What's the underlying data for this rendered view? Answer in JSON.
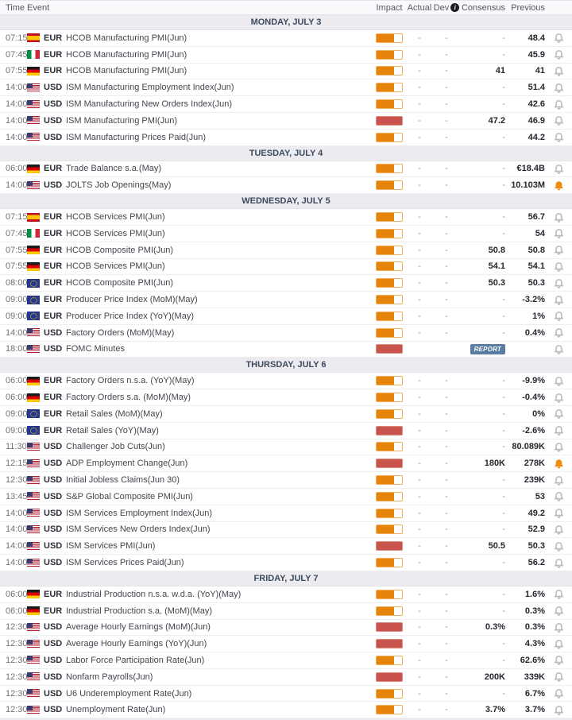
{
  "header": {
    "time": "Time",
    "event": "Event",
    "impact": "Impact",
    "actual": "Actual",
    "dev": "Dev",
    "dev_info": "i",
    "consensus": "Consensus",
    "previous": "Previous"
  },
  "colors": {
    "impact_medium": "#e5830a",
    "impact_high": "#c9544d",
    "bell_active": "#ee8c0d",
    "report_badge": "#5a7ca3",
    "section_bg": "#ebebf0"
  },
  "days": [
    {
      "label": "MONDAY, JULY 3",
      "rows": [
        {
          "time": "07:15",
          "flag": "es",
          "currency": "EUR",
          "event": "HCOB Manufacturing PMI(Jun)",
          "impact": "medium",
          "actual": "-",
          "dev": "-",
          "consensus": "-",
          "previous": "48.4",
          "bell": "default"
        },
        {
          "time": "07:45",
          "flag": "it",
          "currency": "EUR",
          "event": "HCOB Manufacturing PMI(Jun)",
          "impact": "medium",
          "actual": "-",
          "dev": "-",
          "consensus": "-",
          "previous": "45.9",
          "bell": "default"
        },
        {
          "time": "07:55",
          "flag": "de",
          "currency": "EUR",
          "event": "HCOB Manufacturing PMI(Jun)",
          "impact": "medium",
          "actual": "-",
          "dev": "-",
          "consensus": "41",
          "previous": "41",
          "bell": "default"
        },
        {
          "time": "14:00",
          "flag": "us",
          "currency": "USD",
          "event": "ISM Manufacturing Employment Index(Jun)",
          "impact": "medium",
          "actual": "-",
          "dev": "-",
          "consensus": "-",
          "previous": "51.4",
          "bell": "default"
        },
        {
          "time": "14:00",
          "flag": "us",
          "currency": "USD",
          "event": "ISM Manufacturing New Orders Index(Jun)",
          "impact": "medium",
          "actual": "-",
          "dev": "-",
          "consensus": "-",
          "previous": "42.6",
          "bell": "default"
        },
        {
          "time": "14:00",
          "flag": "us",
          "currency": "USD",
          "event": "ISM Manufacturing PMI(Jun)",
          "impact": "high",
          "actual": "-",
          "dev": "-",
          "consensus": "47.2",
          "previous": "46.9",
          "bell": "default"
        },
        {
          "time": "14:00",
          "flag": "us",
          "currency": "USD",
          "event": "ISM Manufacturing Prices Paid(Jun)",
          "impact": "medium",
          "actual": "-",
          "dev": "-",
          "consensus": "-",
          "previous": "44.2",
          "bell": "default"
        }
      ]
    },
    {
      "label": "TUESDAY, JULY 4",
      "rows": [
        {
          "time": "06:00",
          "flag": "de",
          "currency": "EUR",
          "event": "Trade Balance s.a.(May)",
          "impact": "medium",
          "actual": "-",
          "dev": "-",
          "consensus": "-",
          "previous": "€18.4B",
          "bell": "default"
        },
        {
          "time": "14:00",
          "flag": "us",
          "currency": "USD",
          "event": "JOLTS Job Openings(May)",
          "impact": "medium",
          "actual": "-",
          "dev": "-",
          "consensus": "-",
          "previous": "10.103M",
          "bell": "active"
        }
      ]
    },
    {
      "label": "WEDNESDAY, JULY 5",
      "rows": [
        {
          "time": "07:15",
          "flag": "es",
          "currency": "EUR",
          "event": "HCOB Services PMI(Jun)",
          "impact": "medium",
          "actual": "-",
          "dev": "-",
          "consensus": "-",
          "previous": "56.7",
          "bell": "default"
        },
        {
          "time": "07:45",
          "flag": "it",
          "currency": "EUR",
          "event": "HCOB Services PMI(Jun)",
          "impact": "medium",
          "actual": "-",
          "dev": "-",
          "consensus": "-",
          "previous": "54",
          "bell": "default"
        },
        {
          "time": "07:55",
          "flag": "de",
          "currency": "EUR",
          "event": "HCOB Composite PMI(Jun)",
          "impact": "medium",
          "actual": "-",
          "dev": "-",
          "consensus": "50.8",
          "previous": "50.8",
          "bell": "default"
        },
        {
          "time": "07:55",
          "flag": "de",
          "currency": "EUR",
          "event": "HCOB Services PMI(Jun)",
          "impact": "medium",
          "actual": "-",
          "dev": "-",
          "consensus": "54.1",
          "previous": "54.1",
          "bell": "default"
        },
        {
          "time": "08:00",
          "flag": "eu",
          "currency": "EUR",
          "event": "HCOB Composite PMI(Jun)",
          "impact": "medium",
          "actual": "-",
          "dev": "-",
          "consensus": "50.3",
          "previous": "50.3",
          "bell": "default"
        },
        {
          "time": "09:00",
          "flag": "eu",
          "currency": "EUR",
          "event": "Producer Price Index (MoM)(May)",
          "impact": "medium",
          "actual": "-",
          "dev": "-",
          "consensus": "-",
          "previous": "-3.2%",
          "bell": "default"
        },
        {
          "time": "09:00",
          "flag": "eu",
          "currency": "EUR",
          "event": "Producer Price Index (YoY)(May)",
          "impact": "medium",
          "actual": "-",
          "dev": "-",
          "consensus": "-",
          "previous": "1%",
          "bell": "default"
        },
        {
          "time": "14:00",
          "flag": "us",
          "currency": "USD",
          "event": "Factory Orders (MoM)(May)",
          "impact": "medium",
          "actual": "-",
          "dev": "-",
          "consensus": "-",
          "previous": "0.4%",
          "bell": "default"
        },
        {
          "time": "18:00",
          "flag": "us",
          "currency": "USD",
          "event": "FOMC Minutes",
          "impact": "high",
          "actual": "",
          "dev": "",
          "consensus": "",
          "previous": "",
          "bell": "default",
          "report": true,
          "report_label": "REPORT"
        }
      ]
    },
    {
      "label": "THURSDAY, JULY 6",
      "rows": [
        {
          "time": "06:00",
          "flag": "de",
          "currency": "EUR",
          "event": "Factory Orders n.s.a. (YoY)(May)",
          "impact": "medium",
          "actual": "-",
          "dev": "-",
          "consensus": "-",
          "previous": "-9.9%",
          "bell": "default"
        },
        {
          "time": "06:00",
          "flag": "de",
          "currency": "EUR",
          "event": "Factory Orders s.a. (MoM)(May)",
          "impact": "medium",
          "actual": "-",
          "dev": "-",
          "consensus": "-",
          "previous": "-0.4%",
          "bell": "default"
        },
        {
          "time": "09:00",
          "flag": "eu",
          "currency": "EUR",
          "event": "Retail Sales (MoM)(May)",
          "impact": "medium",
          "actual": "-",
          "dev": "-",
          "consensus": "-",
          "previous": "0%",
          "bell": "default"
        },
        {
          "time": "09:00",
          "flag": "eu",
          "currency": "EUR",
          "event": "Retail Sales (YoY)(May)",
          "impact": "high",
          "actual": "-",
          "dev": "-",
          "consensus": "-",
          "previous": "-2.6%",
          "bell": "default"
        },
        {
          "time": "11:30",
          "flag": "us",
          "currency": "USD",
          "event": "Challenger Job Cuts(Jun)",
          "impact": "medium",
          "actual": "-",
          "dev": "-",
          "consensus": "-",
          "previous": "80.089K",
          "bell": "default"
        },
        {
          "time": "12:15",
          "flag": "us",
          "currency": "USD",
          "event": "ADP Employment Change(Jun)",
          "impact": "high",
          "actual": "-",
          "dev": "-",
          "consensus": "180K",
          "previous": "278K",
          "bell": "active"
        },
        {
          "time": "12:30",
          "flag": "us",
          "currency": "USD",
          "event": "Initial Jobless Claims(Jun 30)",
          "impact": "medium",
          "actual": "-",
          "dev": "-",
          "consensus": "-",
          "previous": "239K",
          "bell": "default"
        },
        {
          "time": "13:45",
          "flag": "us",
          "currency": "USD",
          "event": "S&P Global Composite PMI(Jun)",
          "impact": "medium",
          "actual": "-",
          "dev": "-",
          "consensus": "-",
          "previous": "53",
          "bell": "default"
        },
        {
          "time": "14:00",
          "flag": "us",
          "currency": "USD",
          "event": "ISM Services Employment Index(Jun)",
          "impact": "medium",
          "actual": "-",
          "dev": "-",
          "consensus": "-",
          "previous": "49.2",
          "bell": "default"
        },
        {
          "time": "14:00",
          "flag": "us",
          "currency": "USD",
          "event": "ISM Services New Orders Index(Jun)",
          "impact": "medium",
          "actual": "-",
          "dev": "-",
          "consensus": "-",
          "previous": "52.9",
          "bell": "default"
        },
        {
          "time": "14:00",
          "flag": "us",
          "currency": "USD",
          "event": "ISM Services PMI(Jun)",
          "impact": "high",
          "actual": "-",
          "dev": "-",
          "consensus": "50.5",
          "previous": "50.3",
          "bell": "default"
        },
        {
          "time": "14:00",
          "flag": "us",
          "currency": "USD",
          "event": "ISM Services Prices Paid(Jun)",
          "impact": "medium",
          "actual": "-",
          "dev": "-",
          "consensus": "-",
          "previous": "56.2",
          "bell": "default"
        }
      ]
    },
    {
      "label": "FRIDAY, JULY 7",
      "rows": [
        {
          "time": "06:00",
          "flag": "de",
          "currency": "EUR",
          "event": "Industrial Production n.s.a. w.d.a. (YoY)(May)",
          "impact": "medium",
          "actual": "-",
          "dev": "-",
          "consensus": "-",
          "previous": "1.6%",
          "bell": "default"
        },
        {
          "time": "06:00",
          "flag": "de",
          "currency": "EUR",
          "event": "Industrial Production s.a. (MoM)(May)",
          "impact": "medium",
          "actual": "-",
          "dev": "-",
          "consensus": "-",
          "previous": "0.3%",
          "bell": "default"
        },
        {
          "time": "12:30",
          "flag": "us",
          "currency": "USD",
          "event": "Average Hourly Earnings (MoM)(Jun)",
          "impact": "high",
          "actual": "-",
          "dev": "-",
          "consensus": "0.3%",
          "previous": "0.3%",
          "bell": "default"
        },
        {
          "time": "12:30",
          "flag": "us",
          "currency": "USD",
          "event": "Average Hourly Earnings (YoY)(Jun)",
          "impact": "high",
          "actual": "-",
          "dev": "-",
          "consensus": "-",
          "previous": "4.3%",
          "bell": "default"
        },
        {
          "time": "12:30",
          "flag": "us",
          "currency": "USD",
          "event": "Labor Force Participation Rate(Jun)",
          "impact": "medium",
          "actual": "-",
          "dev": "-",
          "consensus": "-",
          "previous": "62.6%",
          "bell": "default"
        },
        {
          "time": "12:30",
          "flag": "us",
          "currency": "USD",
          "event": "Nonfarm Payrolls(Jun)",
          "impact": "high",
          "actual": "-",
          "dev": "-",
          "consensus": "200K",
          "previous": "339K",
          "bell": "default"
        },
        {
          "time": "12:30",
          "flag": "us",
          "currency": "USD",
          "event": "U6 Underemployment Rate(Jun)",
          "impact": "medium",
          "actual": "-",
          "dev": "-",
          "consensus": "-",
          "previous": "6.7%",
          "bell": "default"
        },
        {
          "time": "12:30",
          "flag": "us",
          "currency": "USD",
          "event": "Unemployment Rate(Jun)",
          "impact": "medium",
          "actual": "-",
          "dev": "-",
          "consensus": "3.7%",
          "previous": "3.7%",
          "bell": "default"
        }
      ]
    }
  ]
}
